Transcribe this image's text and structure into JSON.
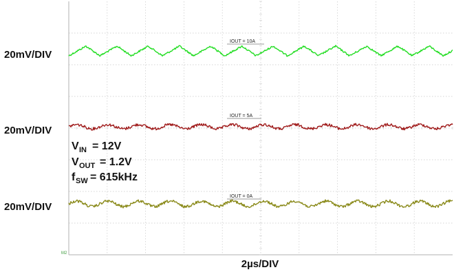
{
  "chart_data": {
    "type": "line",
    "x_axis_label": "2µs/DIV",
    "grid": true,
    "grid_divisions": {
      "horizontal": 10,
      "vertical": 8
    },
    "conditions": {
      "vin": {
        "symbol": "V",
        "subscript": "IN",
        "value": "= 12V"
      },
      "vout": {
        "symbol": "V",
        "subscript": "OUT",
        "value": "= 1.2V"
      },
      "fsw": {
        "symbol": "f",
        "subscript": "SW",
        "value": "= 615kHz"
      }
    },
    "series": [
      {
        "scale": "20mV/DIV",
        "tag": "IOUT = 10A",
        "color": "#22dd22",
        "ripple_periods": 12.3
      },
      {
        "scale": "20mV/DIV",
        "tag": "IOUT = 5A",
        "color": "#a01c1c",
        "ripple_periods": 12.3
      },
      {
        "scale": "20mV/DIV",
        "tag": "IOUT = 0A",
        "color": "#8a8a1a",
        "ripple_periods": 12.3
      }
    ]
  }
}
